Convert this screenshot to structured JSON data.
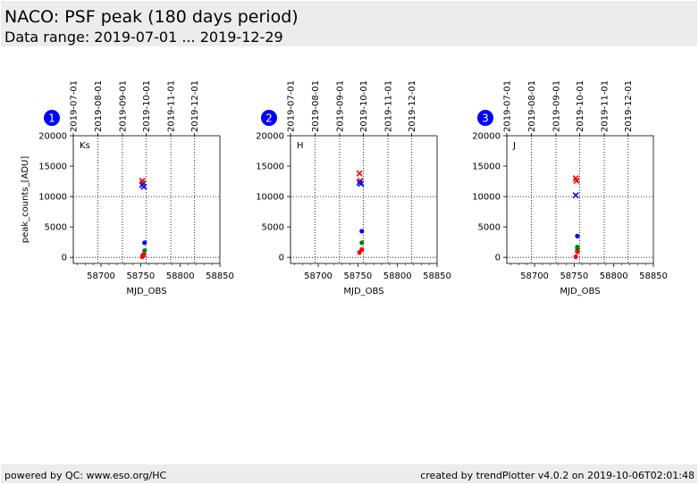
{
  "header": {
    "title": "NACO: PSF peak (180 days period)",
    "subtitle": "Data range: 2019-07-01 ... 2019-12-29"
  },
  "footer": {
    "left": "powered by QC: www.eso.org/HC",
    "right": "created by trendPlotter v4.0.2 on 2019-10-06T02:01:48"
  },
  "colors": {
    "blue": "#0000ff",
    "red": "#ff0000",
    "green": "#008000",
    "badge": "#0000ff"
  },
  "chart_data": [
    {
      "type": "scatter",
      "panel_number": "1",
      "label": "Ks",
      "xlabel": "MJD_OBS",
      "ylabel": "peak_counts_[ADU]",
      "xlim": [
        58665,
        58850
      ],
      "ylim": [
        -1000,
        20000
      ],
      "x_ticks": [
        58700,
        58750,
        58800,
        58850
      ],
      "y_ticks": [
        0,
        5000,
        10000,
        15000,
        20000
      ],
      "top_axis_dates": [
        "2019-07-01",
        "2019-08-01",
        "2019-09-01",
        "2019-10-01",
        "2019-11-01",
        "2019-12-01"
      ],
      "top_axis_mjd": [
        58665,
        58696,
        58727,
        58757,
        58788,
        58818
      ],
      "reference_lines": [
        0,
        10000
      ],
      "grid": true,
      "series": [
        {
          "color": "red",
          "marker": "x",
          "x": [
            58752,
            58753
          ],
          "y": [
            12600,
            12200
          ]
        },
        {
          "color": "blue",
          "marker": "x",
          "x": [
            58752,
            58754
          ],
          "y": [
            11900,
            11600
          ]
        },
        {
          "color": "blue",
          "marker": "dot",
          "x": [
            58755
          ],
          "y": [
            2400
          ]
        },
        {
          "color": "green",
          "marker": "dot",
          "x": [
            58755,
            58753
          ],
          "y": [
            1100,
            400
          ]
        },
        {
          "color": "red",
          "marker": "dot",
          "x": [
            58754,
            58752,
            58753
          ],
          "y": [
            500,
            100,
            200
          ]
        }
      ]
    },
    {
      "type": "scatter",
      "panel_number": "2",
      "label": "H",
      "xlabel": "MJD_OBS",
      "ylabel": "",
      "xlim": [
        58665,
        58850
      ],
      "ylim": [
        -1000,
        20000
      ],
      "x_ticks": [
        58700,
        58750,
        58800,
        58850
      ],
      "y_ticks": [
        0,
        5000,
        10000,
        15000,
        20000
      ],
      "top_axis_dates": [
        "2019-07-01",
        "2019-08-01",
        "2019-09-01",
        "2019-10-01",
        "2019-11-01",
        "2019-12-01"
      ],
      "top_axis_mjd": [
        58665,
        58696,
        58727,
        58757,
        58788,
        58818
      ],
      "reference_lines": [
        0,
        10000
      ],
      "grid": true,
      "series": [
        {
          "color": "red",
          "marker": "x",
          "x": [
            58752,
            58753
          ],
          "y": [
            13800,
            12600
          ]
        },
        {
          "color": "blue",
          "marker": "x",
          "x": [
            58752,
            58754
          ],
          "y": [
            12300,
            12100
          ]
        },
        {
          "color": "blue",
          "marker": "dot",
          "x": [
            58755
          ],
          "y": [
            4300
          ]
        },
        {
          "color": "green",
          "marker": "dot",
          "x": [
            58755
          ],
          "y": [
            2400
          ]
        },
        {
          "color": "red",
          "marker": "dot",
          "x": [
            58755,
            58752
          ],
          "y": [
            1300,
            800
          ]
        }
      ]
    },
    {
      "type": "scatter",
      "panel_number": "3",
      "label": "J",
      "xlabel": "MJD_OBS",
      "ylabel": "",
      "xlim": [
        58665,
        58850
      ],
      "ylim": [
        -1000,
        20000
      ],
      "x_ticks": [
        58700,
        58750,
        58800,
        58850
      ],
      "y_ticks": [
        0,
        5000,
        10000,
        15000,
        20000
      ],
      "top_axis_dates": [
        "2019-07-01",
        "2019-08-01",
        "2019-09-01",
        "2019-10-01",
        "2019-11-01",
        "2019-12-01"
      ],
      "top_axis_mjd": [
        58665,
        58696,
        58727,
        58757,
        58788,
        58818
      ],
      "reference_lines": [
        0,
        10000
      ],
      "grid": true,
      "series": [
        {
          "color": "red",
          "marker": "x",
          "x": [
            58752,
            58753
          ],
          "y": [
            13000,
            12600
          ]
        },
        {
          "color": "blue",
          "marker": "x",
          "x": [
            58752
          ],
          "y": [
            10200
          ]
        },
        {
          "color": "blue",
          "marker": "dot",
          "x": [
            58754
          ],
          "y": [
            3500
          ]
        },
        {
          "color": "green",
          "marker": "dot",
          "x": [
            58754,
            58754
          ],
          "y": [
            1700,
            1300
          ]
        },
        {
          "color": "red",
          "marker": "dot",
          "x": [
            58754,
            58752
          ],
          "y": [
            900,
            100
          ]
        }
      ]
    }
  ]
}
